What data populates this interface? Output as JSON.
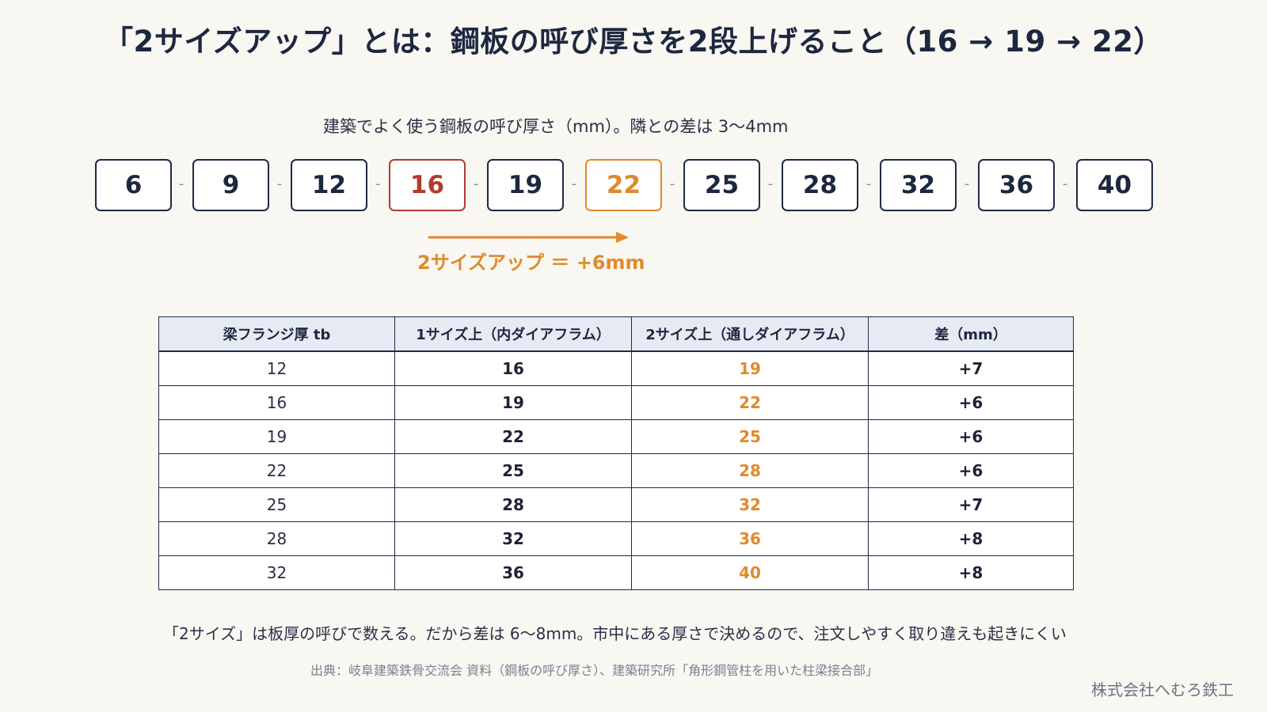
{
  "title": "「2サイズアップ」とは：鋼板の呼び厚さを2段上げること（16 → 19 → 22）",
  "subtitle": "建築でよく使う鋼板の呼び厚さ（mm）。隣との差は 3〜4mm",
  "sizes": [
    "6",
    "9",
    "12",
    "16",
    "19",
    "22",
    "25",
    "28",
    "32",
    "36",
    "40"
  ],
  "separator": "-",
  "highlight": {
    "from_index": 3,
    "to_index": 5,
    "from_color": "#b23a30",
    "to_color": "#e08a2c"
  },
  "jump_label": "2サイズアップ ＝ +6mm",
  "table": {
    "headers": [
      "梁フランジ厚 tb",
      "1サイズ上（内ダイアフラム）",
      "2サイズ上（通しダイアフラム）",
      "差（mm）"
    ],
    "rows": [
      [
        "12",
        "16",
        "19",
        "+7"
      ],
      [
        "16",
        "19",
        "22",
        "+6"
      ],
      [
        "19",
        "22",
        "25",
        "+6"
      ],
      [
        "22",
        "25",
        "28",
        "+6"
      ],
      [
        "25",
        "28",
        "32",
        "+7"
      ],
      [
        "28",
        "32",
        "36",
        "+8"
      ],
      [
        "32",
        "36",
        "40",
        "+8"
      ]
    ]
  },
  "note": "「2サイズ」は板厚の呼びで数える。だから差は 6〜8mm。市中にある厚さで決めるので、注文しやすく取り違えも起きにくい",
  "source": "出典：岐阜建築鉄骨交流会 資料（鋼板の呼び厚さ）、建築研究所「角形鋼管柱を用いた柱梁接合部」",
  "company": "株式会社へむろ鉄工",
  "colors": {
    "navy": "#1e2740",
    "accent_orange": "#e08a2c",
    "accent_red": "#b23a30",
    "header_bg": "#e6eaf3",
    "page_bg": "#f9f7f2"
  }
}
